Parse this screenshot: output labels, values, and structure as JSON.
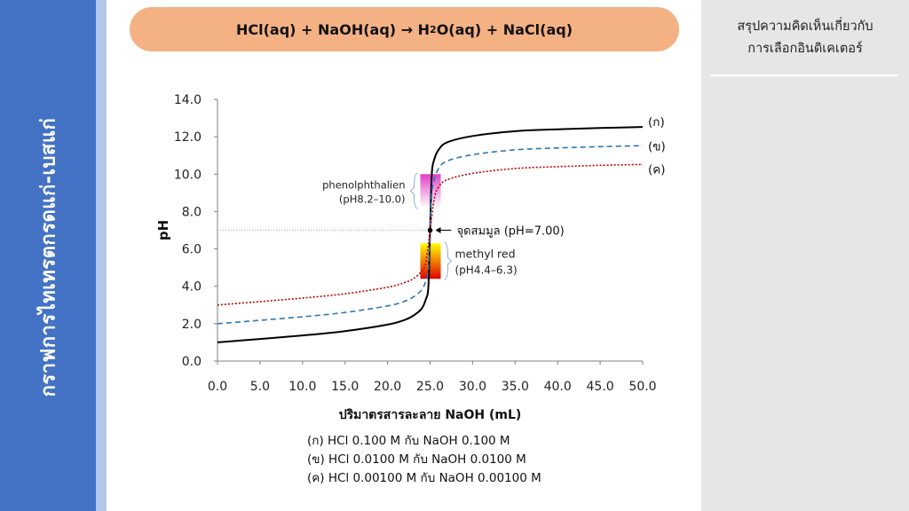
{
  "sidebar": {
    "title": "กราฟการไทเทรตกรดแก่-เบสแก่"
  },
  "equation": {
    "reactants": "HCl(aq) + NaOH(aq)",
    "arrow": "→",
    "product_h": "H",
    "product_sub": "2",
    "product_rest": "O(aq) + NaCl(aq)"
  },
  "panel": {
    "title_line1": "สรุปความคิดเห็นเกี่ยวกับ",
    "title_line2": "การเลือกอินดิเคเตอร์"
  },
  "chart_data": {
    "type": "line",
    "xlabel": "ปริมาตรสารละลาย NaOH (mL)",
    "ylabel": "pH",
    "xlim": [
      0,
      50
    ],
    "ylim": [
      0,
      14
    ],
    "x_ticks": [
      "0.0",
      "5.0",
      "10.0",
      "15.0",
      "20.0",
      "25.0",
      "30.0",
      "35.0",
      "40.0",
      "45.0",
      "50.0"
    ],
    "y_ticks": [
      "0.0",
      "2.0",
      "4.0",
      "6.0",
      "8.0",
      "10.0",
      "12.0",
      "14.0"
    ],
    "grid": false,
    "series": [
      {
        "name": "(ก)",
        "color": "#000000",
        "style": "solid",
        "x": [
          0,
          5,
          10,
          15,
          20,
          22,
          23,
          24,
          24.5,
          24.8,
          25.0,
          25.2,
          25.5,
          26,
          27,
          30,
          35,
          40,
          45,
          50
        ],
        "y": [
          1.0,
          1.18,
          1.37,
          1.6,
          1.95,
          2.2,
          2.42,
          2.8,
          3.3,
          4.0,
          7.0,
          10.0,
          10.8,
          11.3,
          11.7,
          12.04,
          12.3,
          12.4,
          12.47,
          12.52
        ]
      },
      {
        "name": "(ข)",
        "color": "#2e75b6",
        "style": "dashed",
        "x": [
          0,
          5,
          10,
          15,
          20,
          22,
          23,
          24,
          24.5,
          24.8,
          25.0,
          25.2,
          25.5,
          26,
          27,
          30,
          35,
          40,
          45,
          50
        ],
        "y": [
          2.0,
          2.18,
          2.37,
          2.6,
          2.95,
          3.2,
          3.42,
          3.8,
          4.3,
          5.0,
          7.0,
          9.0,
          9.7,
          10.3,
          10.7,
          11.04,
          11.3,
          11.4,
          11.47,
          11.52
        ]
      },
      {
        "name": "(ค)",
        "color": "#c00000",
        "style": "dotted",
        "x": [
          0,
          5,
          10,
          15,
          20,
          22,
          23,
          24,
          24.5,
          25.0,
          25.5,
          26,
          27,
          30,
          35,
          40,
          45,
          50
        ],
        "y": [
          3.0,
          3.18,
          3.37,
          3.6,
          3.95,
          4.2,
          4.4,
          4.8,
          5.3,
          7.0,
          8.7,
          9.3,
          9.7,
          10.04,
          10.3,
          10.4,
          10.47,
          10.52
        ]
      }
    ],
    "equivalence_point": {
      "x": 25.0,
      "y": 7.0,
      "label": "จุดสมมูล (pH=7.00)"
    },
    "indicators": [
      {
        "name_line1": "phenolphthalien",
        "name_line2": "(pH8.2–10.0)",
        "ph_low": 8.2,
        "ph_high": 10.0,
        "color_low": "#ffffff",
        "color_high": "#e040c8",
        "side": "left"
      },
      {
        "name_line1": "methyl red",
        "name_line2": "(pH4.4–6.3)",
        "ph_low": 4.4,
        "ph_high": 6.3,
        "color_low": "#e00000",
        "color_high": "#ffff00",
        "side": "right"
      }
    ]
  },
  "legend": [
    "(ก) HCl 0.100 M กับ NaOH 0.100 M",
    "(ข) HCl 0.0100 M กับ NaOH 0.0100 M",
    "(ค) HCl 0.00100 M กับ NaOH 0.00100 M"
  ]
}
